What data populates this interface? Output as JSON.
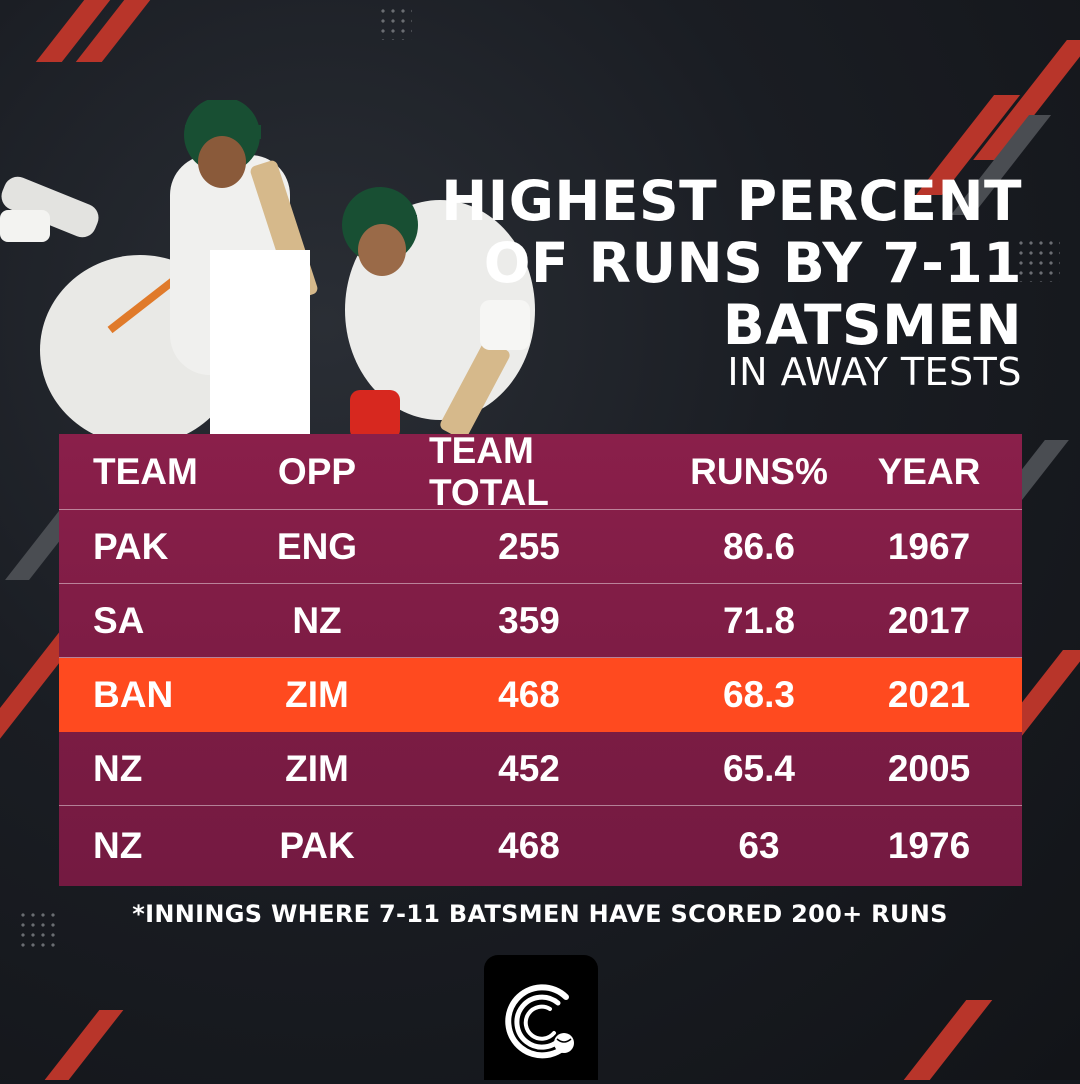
{
  "title_lines": [
    "HIGHEST PERCENT",
    "OF RUNS BY 7-11",
    "BATSMEN"
  ],
  "subtitle": "IN AWAY TESTS",
  "footnote": "*INNINGS WHERE 7-11 BATSMEN HAVE SCORED 200+ RUNS",
  "colors": {
    "table_bg": "#7c1c44",
    "highlight": "#ff4a1f",
    "accent_stripe": "#b8352a",
    "background": "#15191f"
  },
  "chart_data": {
    "type": "table",
    "columns": [
      "TEAM",
      "OPP",
      "TEAM TOTAL",
      "RUNS%",
      "YEAR"
    ],
    "rows": [
      {
        "team": "PAK",
        "opp": "ENG",
        "total": "255",
        "runs_pct": "86.6",
        "year": "1967",
        "highlight": false
      },
      {
        "team": "SA",
        "opp": "NZ",
        "total": "359",
        "runs_pct": "71.8",
        "year": "2017",
        "highlight": false
      },
      {
        "team": "BAN",
        "opp": "ZIM",
        "total": "468",
        "runs_pct": "68.3",
        "year": "2021",
        "highlight": true
      },
      {
        "team": "NZ",
        "opp": "ZIM",
        "total": "452",
        "runs_pct": "65.4",
        "year": "2005",
        "highlight": false
      },
      {
        "team": "NZ",
        "opp": "PAK",
        "total": "468",
        "runs_pct": "63",
        "year": "1976",
        "highlight": false
      }
    ]
  },
  "logo_icon": "cricket-ball-logo-icon"
}
